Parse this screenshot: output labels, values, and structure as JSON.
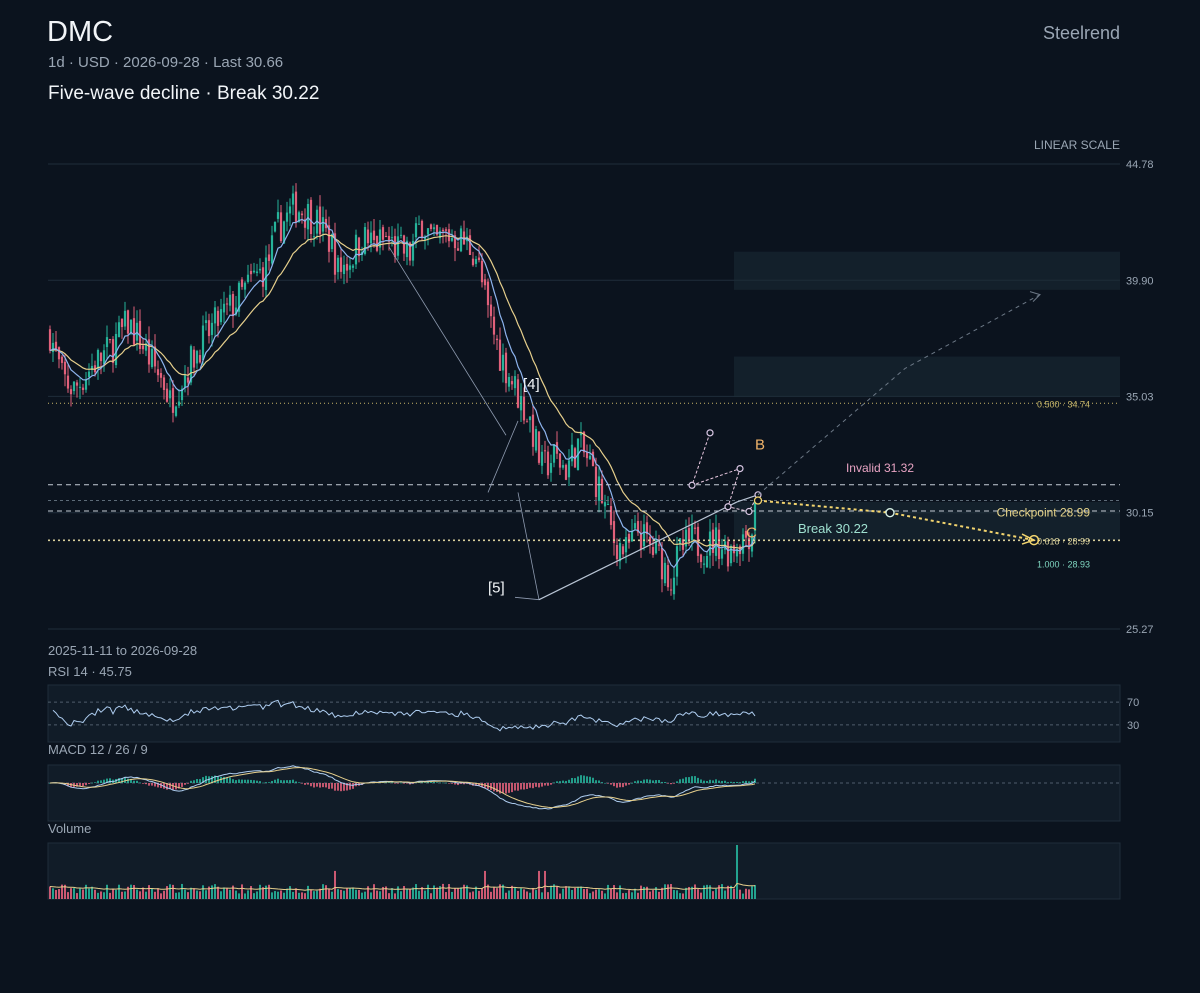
{
  "header": {
    "ticker": "DMC",
    "meta": "1d · USD · 2026-09-28 · Last 30.66",
    "subtitle": "Five-wave decline · Break 30.22",
    "brand": "Steelrend"
  },
  "colors": {
    "up": "#26b39a",
    "down": "#e0607a",
    "ma_fast": "#8eb4ee",
    "ma_slow": "#e6cf8c",
    "projection": "#f2d46e",
    "invalid_label": "#e9a4c4",
    "break_label": "#9fe0d0",
    "wave_label": "#f1b46a",
    "fib": "#c9b86a",
    "fib_1": "#7fd6c0",
    "grid": "#1f2d3a"
  },
  "chart_data": {
    "type": "candlestick",
    "scale": "LINEAR SCALE",
    "date_range": "2025-11-11 to 2026-09-28",
    "ylim": [
      25.27,
      44.78
    ],
    "y_ticks": [
      "44.78",
      "39.90",
      "35.03",
      "30.15",
      "25.27"
    ],
    "last": 30.66,
    "zones": [
      {
        "from": 39.5,
        "to": 41.1
      },
      {
        "from": 35.0,
        "to": 36.7
      },
      {
        "from": 29.0,
        "to": 30.6
      }
    ],
    "levels": [
      {
        "name": "invalid",
        "value": 31.32,
        "label": "Invalid 31.32",
        "style": "dash"
      },
      {
        "name": "mid",
        "value": 30.66,
        "label": "",
        "style": "dash-faint"
      },
      {
        "name": "break",
        "value": 30.22,
        "label": "Break 30.22",
        "style": "dash"
      },
      {
        "name": "fib-0.5",
        "value": 34.74,
        "label": "0.500 · 34.74",
        "style": "dot"
      },
      {
        "name": "fib-0.618",
        "value": 28.99,
        "label": "0.618 · 28.99",
        "style": "dot-strong"
      },
      {
        "name": "fib-1.0",
        "value": 28.93,
        "label": "1.000 · 28.93",
        "style": "none"
      }
    ],
    "checkpoint": {
      "label": "Checkpoint 28.99",
      "value": 28.99
    },
    "wave_labels": {
      "w4": "[4]",
      "w5": "[5]",
      "B": "B",
      "C": "C"
    },
    "projection": [
      {
        "bar": 236,
        "price": 30.66
      },
      {
        "bar": 280,
        "price": 30.15
      },
      {
        "bar": 328,
        "price": 29.0
      }
    ],
    "bull_path": [
      {
        "bar": 236,
        "price": 30.9
      },
      {
        "bar": 285,
        "price": 36.2
      },
      {
        "bar": 330,
        "price": 39.3
      }
    ],
    "n_bars": 236,
    "anchors": [
      [
        0,
        37.7
      ],
      [
        4,
        35.8
      ],
      [
        8,
        35.3
      ],
      [
        14,
        36.3
      ],
      [
        20,
        37.0
      ],
      [
        26,
        38.1
      ],
      [
        30,
        37.4
      ],
      [
        34,
        36.4
      ],
      [
        38,
        35.6
      ],
      [
        40,
        34.8
      ],
      [
        44,
        35.8
      ],
      [
        50,
        37.2
      ],
      [
        56,
        38.2
      ],
      [
        62,
        39.0
      ],
      [
        68,
        40.0
      ],
      [
        72,
        40.4
      ],
      [
        76,
        42.1
      ],
      [
        82,
        43.0
      ],
      [
        86,
        42.7
      ],
      [
        90,
        42.2
      ],
      [
        94,
        41.4
      ],
      [
        96,
        40.3
      ],
      [
        100,
        40.8
      ],
      [
        104,
        41.7
      ],
      [
        108,
        41.4
      ],
      [
        112,
        41.6
      ],
      [
        116,
        41.2
      ],
      [
        120,
        41.0
      ],
      [
        124,
        42.4
      ],
      [
        128,
        41.4
      ],
      [
        132,
        41.8
      ],
      [
        136,
        41.7
      ],
      [
        140,
        41.3
      ],
      [
        142,
        41.0
      ],
      [
        146,
        38.5
      ],
      [
        150,
        36.8
      ],
      [
        154,
        35.7
      ],
      [
        157,
        34.8
      ],
      [
        160,
        34.0
      ],
      [
        164,
        32.0
      ],
      [
        168,
        32.5
      ],
      [
        172,
        32.0
      ],
      [
        176,
        33.0
      ],
      [
        180,
        32.2
      ],
      [
        184,
        30.8
      ],
      [
        188,
        29.0
      ],
      [
        192,
        28.5
      ],
      [
        196,
        29.4
      ],
      [
        200,
        28.7
      ],
      [
        203,
        28.3
      ],
      [
        207,
        27.4
      ],
      [
        210,
        28.5
      ],
      [
        214,
        29.0
      ],
      [
        218,
        28.7
      ],
      [
        222,
        29.0
      ],
      [
        226,
        28.6
      ],
      [
        230,
        29.0
      ],
      [
        234,
        29.4
      ],
      [
        238,
        29.1
      ]
    ],
    "rsi": {
      "label": "RSI 14 · 45.75",
      "levels": [
        70,
        30
      ],
      "level_labels": [
        "70",
        "30"
      ],
      "last": 45.75
    },
    "macd": {
      "label": "MACD 12 / 26 / 9"
    },
    "volume": {
      "label": "Volume"
    }
  }
}
